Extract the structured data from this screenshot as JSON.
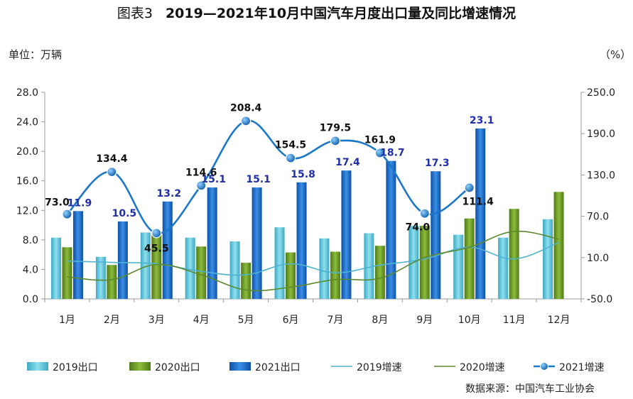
{
  "header": {
    "figure_label": "图表3",
    "title": "2019—2021年10月中国汽车月度出口量及同比增速情况",
    "unit_left": "单位：万辆",
    "unit_right": "（%）",
    "source": "数据来源：中国汽车工业协会"
  },
  "colors": {
    "bar_2019": "#5ec6d8",
    "bar_2020": "#6e9a2a",
    "bar_2021": "#1a66c4",
    "line_2019": "#4fb3d0",
    "line_2020": "#5a8a2c",
    "line_2021": "#1b78c9"
  },
  "chart_data": {
    "type": "bar",
    "categories": [
      "1月",
      "2月",
      "3月",
      "4月",
      "5月",
      "6月",
      "7月",
      "8月",
      "9月",
      "10月",
      "11月",
      "12月"
    ],
    "y_left": {
      "min": 0,
      "max": 28,
      "ticks": [
        "0.0",
        "4.0",
        "8.0",
        "12.0",
        "16.0",
        "20.0",
        "24.0",
        "28.0"
      ]
    },
    "y_right": {
      "min": -50,
      "max": 250,
      "ticks": [
        "-50.0",
        "10.0",
        "70.0",
        "130.0",
        "190.0",
        "250.0"
      ]
    },
    "series": [
      {
        "name": "2019出口",
        "kind": "bar",
        "values": [
          8.3,
          5.7,
          9.0,
          8.3,
          7.8,
          9.7,
          8.2,
          8.9,
          9.9,
          8.7,
          8.3,
          10.8
        ]
      },
      {
        "name": "2020出口",
        "kind": "bar",
        "values": [
          7.0,
          4.6,
          9.0,
          7.1,
          4.9,
          6.3,
          6.4,
          7.2,
          9.9,
          10.9,
          12.2,
          14.5
        ]
      },
      {
        "name": "2021出口",
        "kind": "bar",
        "values": [
          11.9,
          10.5,
          13.2,
          15.1,
          15.1,
          15.8,
          17.4,
          18.7,
          17.3,
          23.1,
          null,
          null
        ]
      },
      {
        "name": "2019增速",
        "kind": "line",
        "values": [
          5.0,
          3.0,
          1.0,
          -10.0,
          -15.0,
          1.0,
          -12.0,
          -1.0,
          8.0,
          25.0,
          8.0,
          32.0
        ]
      },
      {
        "name": "2020增速",
        "kind": "line",
        "values": [
          -18.0,
          -22.0,
          0.0,
          -15.0,
          -37.0,
          -33.0,
          -22.0,
          -20.0,
          10.0,
          25.0,
          48.0,
          37.0
        ]
      },
      {
        "name": "2021增速",
        "kind": "line",
        "values": [
          73.0,
          134.4,
          45.5,
          114.6,
          208.4,
          154.5,
          179.5,
          161.9,
          74.0,
          111.4,
          null,
          null
        ]
      }
    ],
    "labels_2021_growth": [
      "73.0",
      "134.4",
      "45.5",
      "114.6",
      "208.4",
      "154.5",
      "179.5",
      "161.9",
      "74.0",
      "111.4"
    ],
    "labels_2021_export": [
      "11.9",
      "10.5",
      "13.2",
      "15.1",
      "15.1",
      "15.8",
      "17.4",
      "18.7",
      "17.3",
      "23.1"
    ],
    "legend": [
      "2019出口",
      "2020出口",
      "2021出口",
      "2019增速",
      "2020增速",
      "2021增速"
    ],
    "legend_position": "bottom",
    "grid": false
  }
}
